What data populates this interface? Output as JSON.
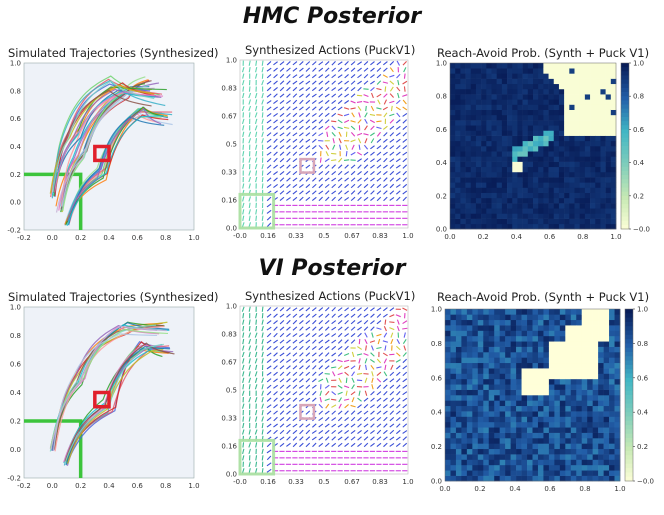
{
  "sections": [
    {
      "heading": "HMC Posterior"
    },
    {
      "heading": "VI Posterior"
    }
  ],
  "chart_data": [
    {
      "type": "line",
      "title": "Simulated Trajectories (Synthesized)",
      "section": "HMC Posterior",
      "xlim": [
        -0.2,
        1.0
      ],
      "ylim": [
        -0.2,
        1.0
      ],
      "xticks": [
        "-0.2",
        "0.0",
        "0.2",
        "0.4",
        "0.6",
        "0.8",
        "1.0"
      ],
      "yticks": [
        "-0.2",
        "0.0",
        "0.2",
        "0.4",
        "0.6",
        "0.8",
        "1.0"
      ],
      "start_region": {
        "x": [
          -0.2,
          0.2
        ],
        "y": [
          -0.2,
          0.2
        ],
        "color": "#3cc43c"
      },
      "goal_region": {
        "x": [
          0.3,
          0.4
        ],
        "y": [
          0.3,
          0.4
        ],
        "color": "#e0202c"
      },
      "path_families": [
        {
          "via": [
            [
              0.05,
              -0.05
            ],
            [
              0.2,
              0.35
            ],
            [
              0.5,
              0.78
            ],
            [
              0.7,
              0.85
            ]
          ],
          "spread": 0.06
        },
        {
          "via": [
            [
              0.0,
              0.05
            ],
            [
              0.15,
              0.5
            ],
            [
              0.45,
              0.85
            ],
            [
              0.75,
              0.75
            ]
          ],
          "spread": 0.06
        },
        {
          "via": [
            [
              0.1,
              -0.15
            ],
            [
              0.35,
              0.2
            ],
            [
              0.6,
              0.65
            ],
            [
              0.8,
              0.6
            ]
          ],
          "spread": 0.05
        }
      ]
    },
    {
      "type": "heatmap",
      "title": "Synthesized Actions (PuckV1)",
      "section": "HMC Posterior",
      "xlim": [
        0.0,
        1.0
      ],
      "ylim": [
        0.0,
        1.0
      ],
      "xticks": [
        "-0.0",
        "0.16",
        "0.33",
        "0.5",
        "0.67",
        "0.83",
        "1.0"
      ],
      "yticks": [
        "0.0",
        "0.16",
        "0.33",
        "0.5",
        "0.67",
        "0.83",
        "1.0"
      ],
      "start_region": {
        "x": [
          0.0,
          0.2
        ],
        "y": [
          0.0,
          0.2
        ],
        "color": "#a8e0a0"
      },
      "goal_region": {
        "x": [
          0.36,
          0.44
        ],
        "y": [
          0.33,
          0.41
        ],
        "color": "#d8a6b8"
      },
      "description_colors": {
        "left": "#5fd3b0",
        "main": "#3b4fd6",
        "bottom": "#d03ce0"
      }
    },
    {
      "type": "heatmap",
      "title": "Reach-Avoid Prob. (Synth + Puck V1)",
      "section": "HMC Posterior",
      "xlim": [
        0.0,
        1.0
      ],
      "ylim": [
        0.0,
        1.0
      ],
      "xticks": [
        "0.0",
        "0.2",
        "0.4",
        "0.6",
        "0.8",
        "1.0"
      ],
      "yticks": [
        "0.0",
        "0.2",
        "0.4",
        "0.6",
        "0.8",
        "1.0"
      ],
      "colorbar": {
        "range": [
          0.0,
          1.0
        ],
        "ticks": [
          "1.0",
          "0.8",
          "0.6",
          "0.4",
          "0.2",
          "0.0"
        ],
        "colormap": "YlGnBu"
      },
      "low_value": 0.0,
      "high_value": 1.0
    },
    {
      "type": "line",
      "title": "Simulated Trajectories (Synthesized)",
      "section": "VI Posterior",
      "xlim": [
        -0.2,
        1.0
      ],
      "ylim": [
        -0.2,
        1.0
      ],
      "xticks": [
        "-0.2",
        "0.0",
        "0.2",
        "0.4",
        "0.6",
        "0.8",
        "1.0"
      ],
      "yticks": [
        "-0.2",
        "0.0",
        "0.2",
        "0.4",
        "0.6",
        "0.8",
        "1.0"
      ],
      "start_region": {
        "x": [
          -0.2,
          0.2
        ],
        "y": [
          -0.2,
          0.2
        ],
        "color": "#3cc43c"
      },
      "goal_region": {
        "x": [
          0.3,
          0.4
        ],
        "y": [
          0.3,
          0.4
        ],
        "color": "#e0202c"
      },
      "path_families": [
        {
          "via": [
            [
              0.0,
              0.0
            ],
            [
              0.2,
              0.5
            ],
            [
              0.5,
              0.85
            ],
            [
              0.78,
              0.85
            ]
          ],
          "spread": 0.05
        },
        {
          "via": [
            [
              0.1,
              -0.1
            ],
            [
              0.4,
              0.3
            ],
            [
              0.65,
              0.72
            ],
            [
              0.82,
              0.7
            ]
          ],
          "spread": 0.05
        }
      ]
    },
    {
      "type": "heatmap",
      "title": "Synthesized Actions (PuckV1)",
      "section": "VI Posterior",
      "xlim": [
        0.0,
        1.0
      ],
      "ylim": [
        0.0,
        1.0
      ],
      "xticks": [
        "-0.0",
        "0.16",
        "0.33",
        "0.5",
        "0.67",
        "0.83",
        "1.0"
      ],
      "yticks": [
        "0.0",
        "0.16",
        "0.33",
        "0.5",
        "0.67",
        "0.83",
        "1.0"
      ],
      "start_region": {
        "x": [
          0.0,
          0.2
        ],
        "y": [
          0.0,
          0.2
        ],
        "color": "#a8e0a0"
      },
      "goal_region": {
        "x": [
          0.36,
          0.44
        ],
        "y": [
          0.33,
          0.41
        ],
        "color": "#d8a6b8"
      },
      "description_colors": {
        "left": "#3cb890",
        "main": "#3b4fd6",
        "bottom": "#d03ce0"
      }
    },
    {
      "type": "heatmap",
      "title": "Reach-Avoid Prob. (Synth + Puck V1)",
      "section": "VI Posterior",
      "xlim": [
        0.0,
        1.0
      ],
      "ylim": [
        0.0,
        1.0
      ],
      "xticks": [
        "0.0",
        "0.2",
        "0.4",
        "0.6",
        "0.8",
        "1.0"
      ],
      "yticks": [
        "0.0",
        "0.2",
        "0.4",
        "0.6",
        "0.8",
        "1.0"
      ],
      "colorbar": {
        "range": [
          0.0,
          1.0
        ],
        "ticks": [
          "1.0",
          "0.8",
          "0.6",
          "0.4",
          "0.2",
          "0.0"
        ],
        "colormap": "YlGnBu"
      },
      "low_value": 0.0,
      "high_value": 1.0
    }
  ]
}
